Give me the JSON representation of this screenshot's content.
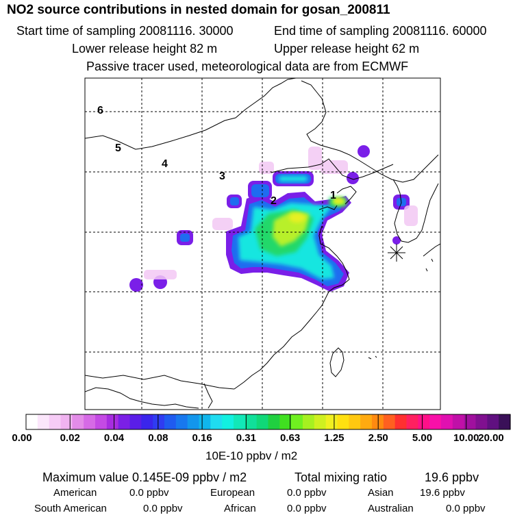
{
  "header": {
    "title": "NO2 source contributions in nested domain for gosan_200811",
    "start_label": "Start time of sampling 20081116. 30000",
    "end_label": "End time of sampling 20081116. 60000",
    "lower_label": "Lower release height   82 m",
    "upper_label": "Upper release height   62 m",
    "tracer_label": "Passive tracer used, meteorological data are from ECMWF"
  },
  "map": {
    "trajectory_labels": [
      "1",
      "2",
      "3",
      "4",
      "5",
      "6"
    ],
    "receptor_marker": "asterisk-marker"
  },
  "colorbar": {
    "tick_labels": [
      "0.00",
      "0.02",
      "0.04",
      "0.08",
      "0.16",
      "0.31",
      "0.63",
      "1.25",
      "2.50",
      "5.00",
      "10.00",
      "20.00"
    ],
    "units": "10E-10 ppbv / m2",
    "colors": [
      "#ffffff",
      "#fbe6fb",
      "#f6ccf6",
      "#f0b3f0",
      "#e38ce8",
      "#d66ae6",
      "#c44ae4",
      "#a72ce0",
      "#7b20e6",
      "#5a1ee8",
      "#3a25ec",
      "#2f3cf2",
      "#1f5bf0",
      "#1878ee",
      "#1396ec",
      "#10b6ec",
      "#1fdcf0",
      "#12f0e0",
      "#12e8b8",
      "#10e09a",
      "#10d878",
      "#20d040",
      "#40e020",
      "#70f020",
      "#a6f020",
      "#cff020",
      "#f0f020",
      "#ffe010",
      "#ffc810",
      "#ffaa10",
      "#ff8a10",
      "#ff6020",
      "#ff3030",
      "#ff2060",
      "#ff1088",
      "#f810a8",
      "#e010b0",
      "#c010a8",
      "#a0109e",
      "#801090",
      "#601080",
      "#3a1058"
    ]
  },
  "stats": {
    "max_label": "Maximum value  0.145E-09 ppbv / m2",
    "total_label": "Total mixing ratio",
    "total_value": "19.6 ppbv"
  },
  "regions": [
    {
      "name": "American",
      "value": "0.0 ppbv"
    },
    {
      "name": "European",
      "value": "0.0 ppbv"
    },
    {
      "name": "Asian",
      "value": "19.6 ppbv"
    },
    {
      "name": "South American",
      "value": "0.0 ppbv"
    },
    {
      "name": "African",
      "value": "0.0 ppbv"
    },
    {
      "name": "Australian",
      "value": "0.0 ppbv"
    }
  ]
}
